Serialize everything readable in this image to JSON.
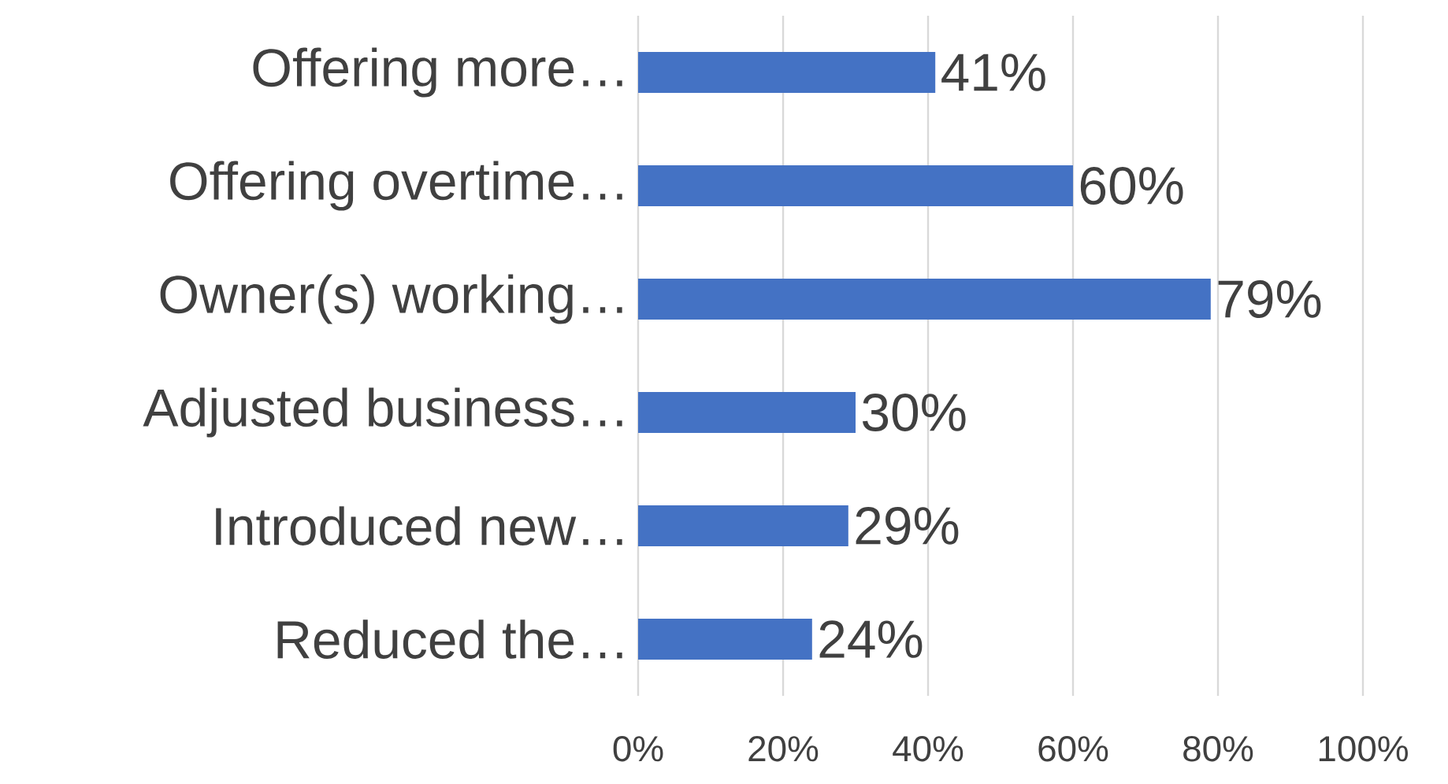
{
  "chart_data": {
    "type": "bar",
    "orientation": "horizontal",
    "categories": [
      "Offering more…",
      "Offering overtime…",
      "Owner(s) working…",
      "Adjusted business…",
      "Introduced new…",
      "Reduced the…"
    ],
    "values": [
      41,
      60,
      79,
      30,
      29,
      24
    ],
    "value_labels": [
      "41%",
      "60%",
      "79%",
      "30%",
      "29%",
      "24%"
    ],
    "color": "#4472c4",
    "xlim": [
      0,
      100
    ],
    "xticks": [
      {
        "value": 0,
        "label": "0%"
      },
      {
        "value": 20,
        "label": "20%"
      },
      {
        "value": 40,
        "label": "40%"
      },
      {
        "value": 60,
        "label": "60%"
      },
      {
        "value": 80,
        "label": "80%"
      },
      {
        "value": 100,
        "label": "100%"
      }
    ],
    "grid": "x"
  }
}
